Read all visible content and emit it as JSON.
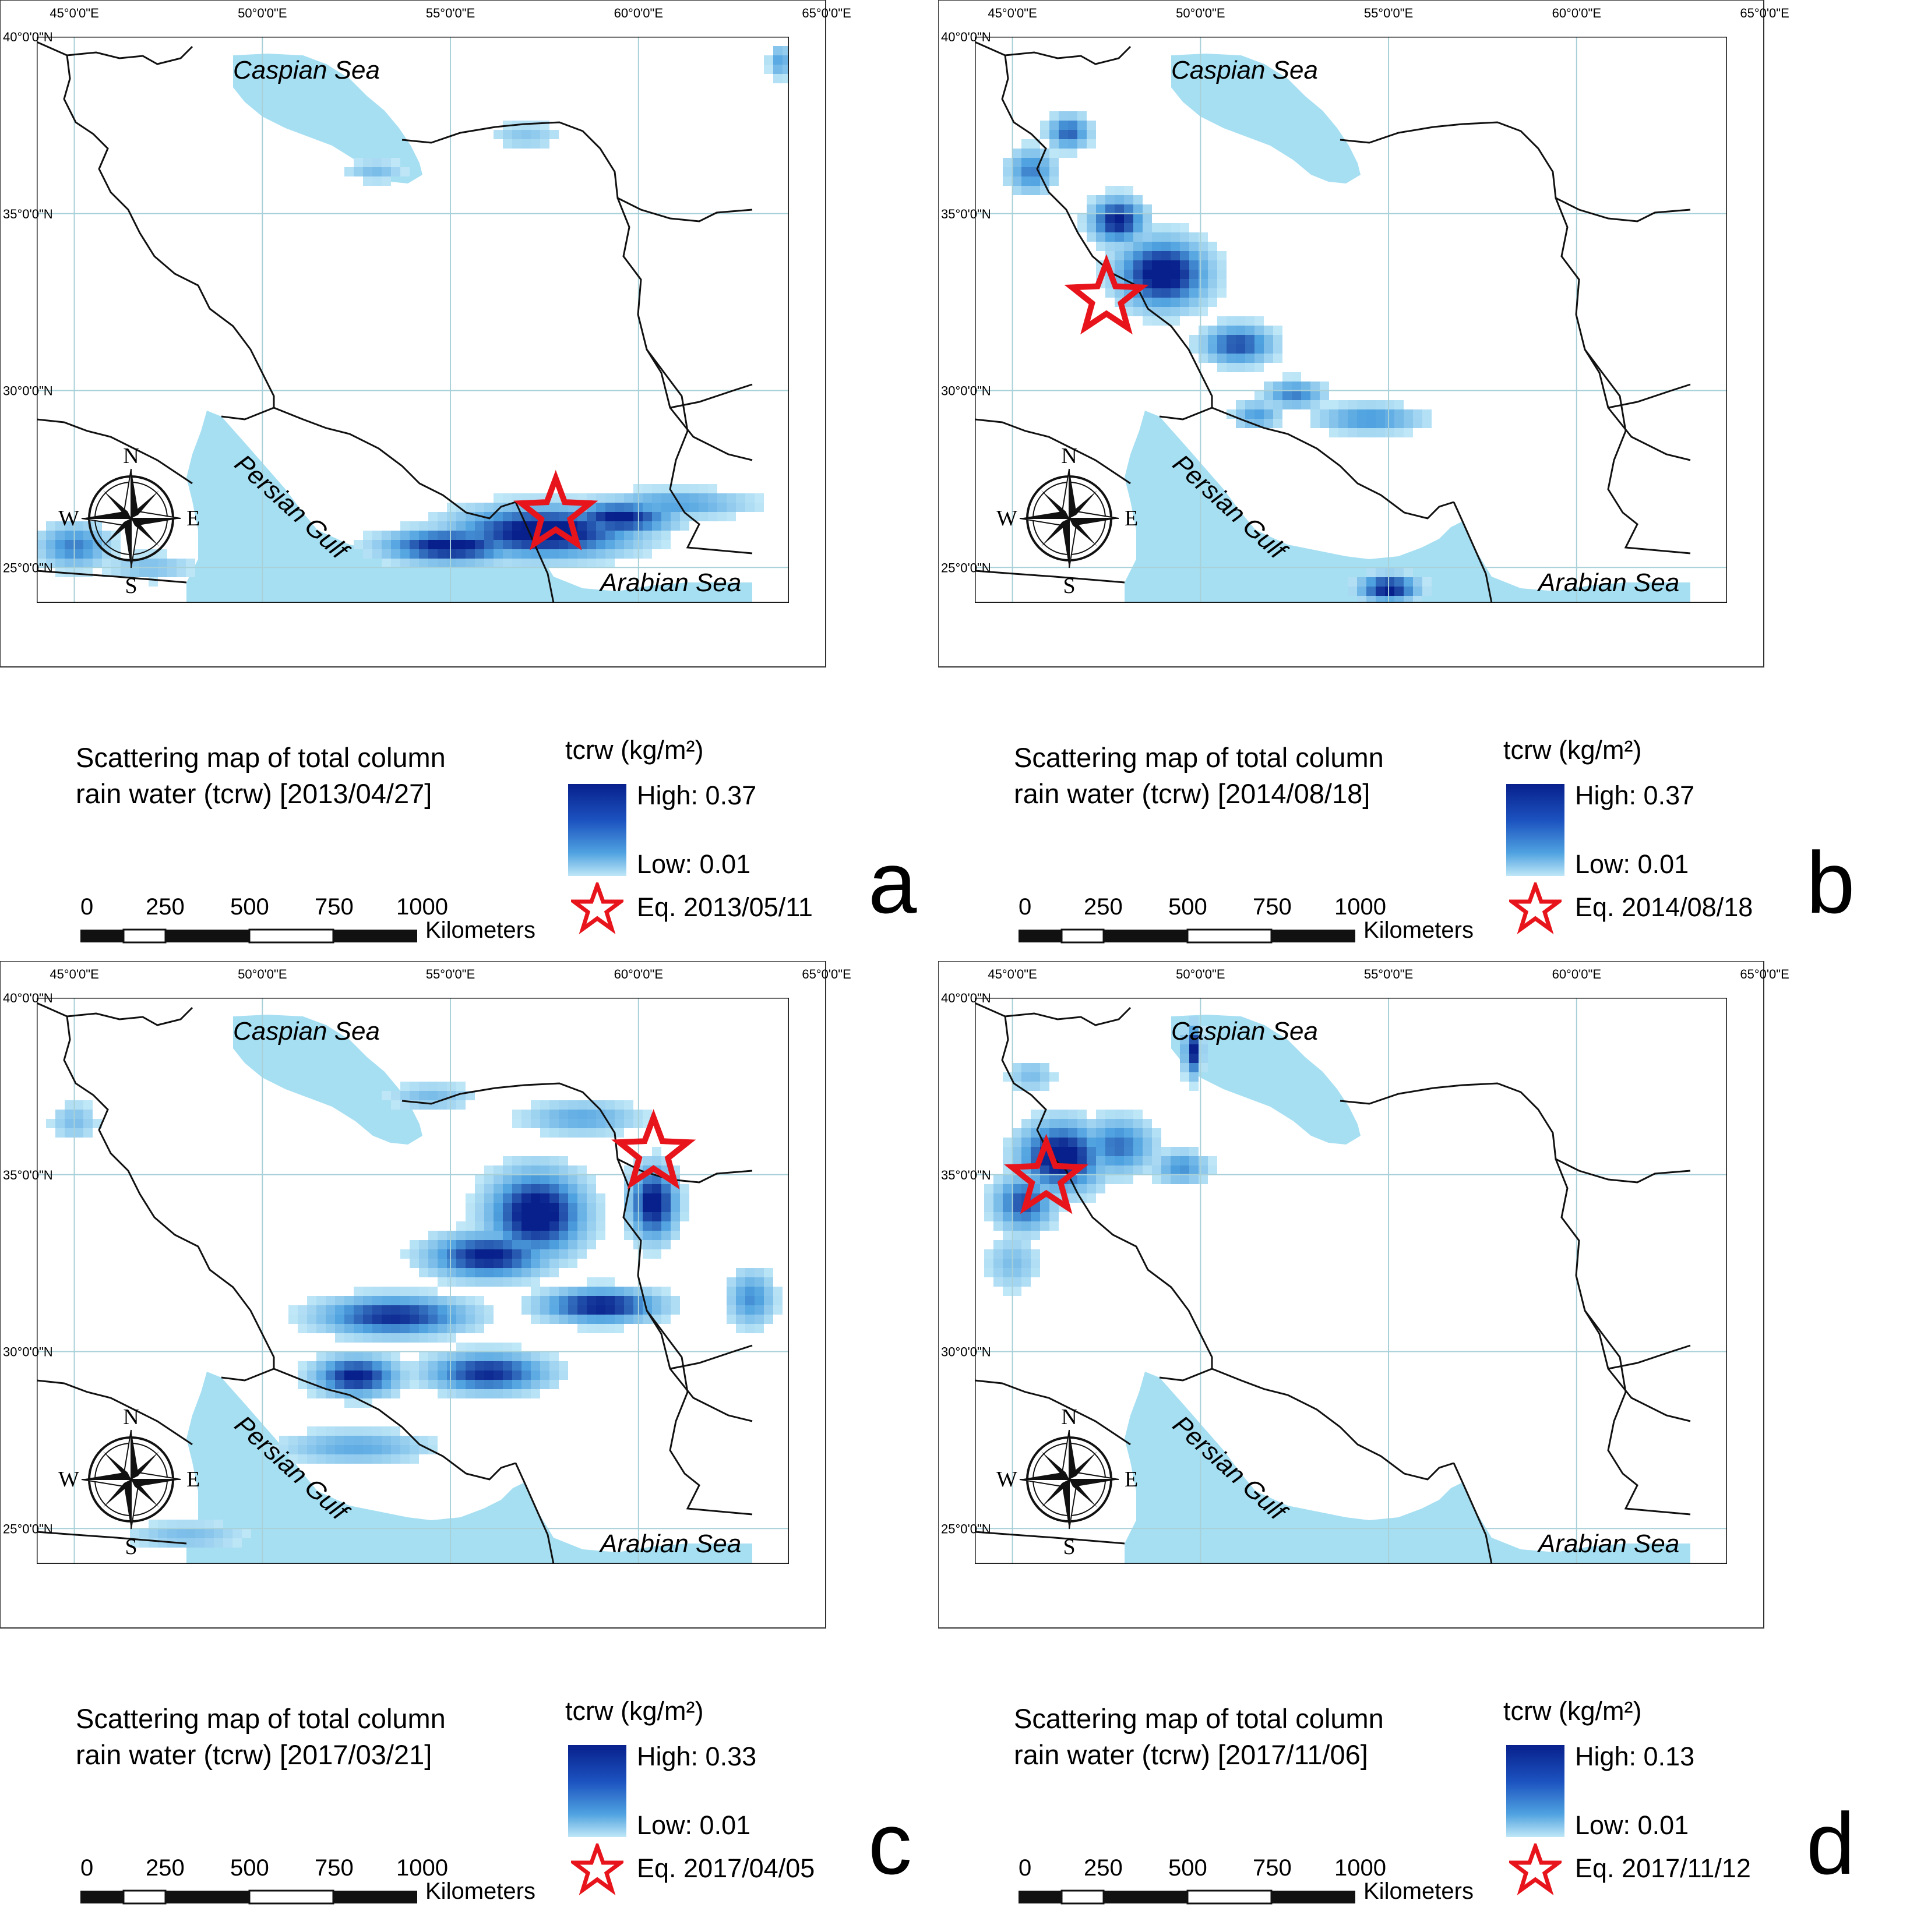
{
  "panels": [
    {
      "letter": "a",
      "title_line1": "Scattering map of total column",
      "title_line2": "rain water (tcrw) [2013/04/27]",
      "legend_title": "tcrw (kg/m²)",
      "high": "High: 0.37",
      "low": "Low: 0.01",
      "eq": "Eq. 2013/05/11",
      "epicenter": {
        "lon": 57.8,
        "lat": 26.5
      }
    },
    {
      "letter": "b",
      "title_line1": "Scattering map of total column",
      "title_line2": "rain water (tcrw) [2014/08/18]",
      "legend_title": "tcrw (kg/m²)",
      "high": "High: 0.37",
      "low": "Low: 0.01",
      "eq": "Eq. 2014/08/18",
      "epicenter": {
        "lon": 47.5,
        "lat": 32.6
      }
    },
    {
      "letter": "c",
      "title_line1": "Scattering map of total column",
      "title_line2": "rain water (tcrw) [2017/03/21]",
      "legend_title": "tcrw (kg/m²)",
      "high": "High: 0.33",
      "low": "Low: 0.01",
      "eq": "Eq. 2017/04/05",
      "epicenter": {
        "lon": 60.4,
        "lat": 35.6
      }
    },
    {
      "letter": "d",
      "title_line1": "Scattering map of total column",
      "title_line2": "rain water (tcrw) [2017/11/06]",
      "legend_title": "tcrw (kg/m²)",
      "high": "High: 0.13",
      "low": "Low: 0.01",
      "eq": "Eq. 2017/11/12",
      "epicenter": {
        "lon": 45.9,
        "lat": 34.9
      }
    }
  ],
  "lon_labels": [
    "45°0'0\"E",
    "50°0'0\"E",
    "55°0'0\"E",
    "60°0'0\"E",
    "65°0'0\"E"
  ],
  "lat_labels": [
    "40°0'0\"N",
    "35°0'0\"N",
    "30°0'0\"N",
    "25°0'0\"N"
  ],
  "place_labels": {
    "caspian": "Caspian Sea",
    "gulf": "Persian Gulf",
    "arabian": "Arabian Sea"
  },
  "compass": {
    "n": "N",
    "s": "S",
    "e": "E",
    "w": "W"
  },
  "scale_labels": [
    "0",
    "250",
    "500",
    "750",
    "1000"
  ],
  "scale_unit": "Kilometers",
  "colors": {
    "water": "#a6dff2",
    "high": "#08208c",
    "low": "#bfe7f7",
    "star": "#e8141c",
    "grid": "#a8d0d8"
  }
}
